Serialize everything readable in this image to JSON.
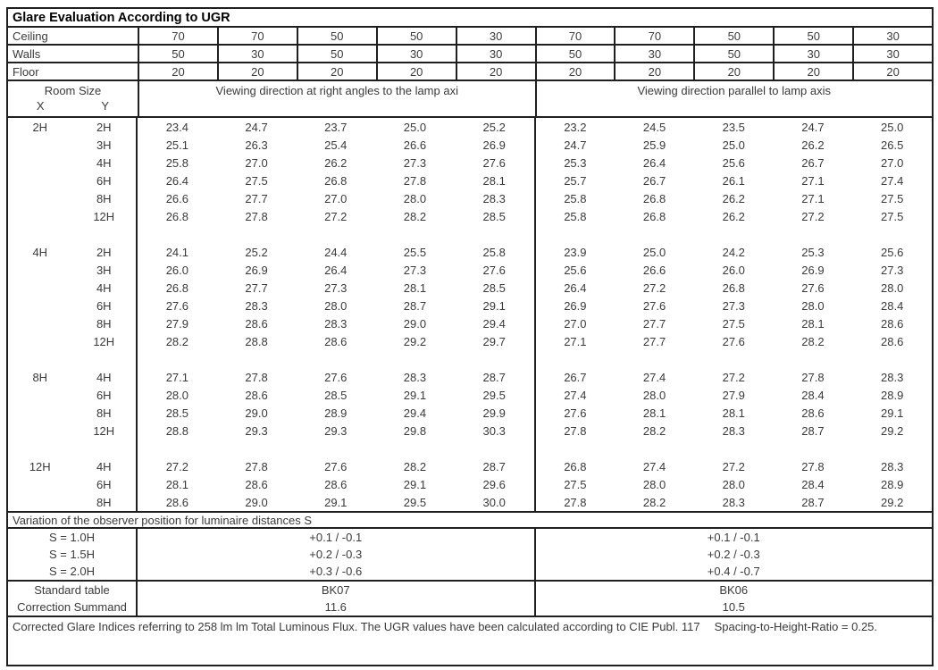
{
  "title": "Glare Evaluation According to UGR",
  "surface_rows": [
    {
      "label": "Ceiling",
      "values": [
        "70",
        "70",
        "50",
        "50",
        "30",
        "70",
        "70",
        "50",
        "50",
        "30"
      ]
    },
    {
      "label": "Walls",
      "values": [
        "50",
        "30",
        "50",
        "30",
        "30",
        "50",
        "30",
        "50",
        "30",
        "30"
      ]
    },
    {
      "label": "Floor",
      "values": [
        "20",
        "20",
        "20",
        "20",
        "20",
        "20",
        "20",
        "20",
        "20",
        "20"
      ]
    }
  ],
  "header": {
    "room_size": "Room Size",
    "x": "X",
    "y": "Y",
    "left": "Viewing direction at right angles to the lamp axi",
    "right": "Viewing direction parallel to lamp axis"
  },
  "blocks": [
    {
      "x": "2H",
      "rows": [
        {
          "y": "2H",
          "values": [
            "23.4",
            "24.7",
            "23.7",
            "25.0",
            "25.2",
            "23.2",
            "24.5",
            "23.5",
            "24.7",
            "25.0"
          ]
        },
        {
          "y": "3H",
          "values": [
            "25.1",
            "26.3",
            "25.4",
            "26.6",
            "26.9",
            "24.7",
            "25.9",
            "25.0",
            "26.2",
            "26.5"
          ]
        },
        {
          "y": "4H",
          "values": [
            "25.8",
            "27.0",
            "26.2",
            "27.3",
            "27.6",
            "25.3",
            "26.4",
            "25.6",
            "26.7",
            "27.0"
          ]
        },
        {
          "y": "6H",
          "values": [
            "26.4",
            "27.5",
            "26.8",
            "27.8",
            "28.1",
            "25.7",
            "26.7",
            "26.1",
            "27.1",
            "27.4"
          ]
        },
        {
          "y": "8H",
          "values": [
            "26.6",
            "27.7",
            "27.0",
            "28.0",
            "28.3",
            "25.8",
            "26.8",
            "26.2",
            "27.1",
            "27.5"
          ]
        },
        {
          "y": "12H",
          "values": [
            "26.8",
            "27.8",
            "27.2",
            "28.2",
            "28.5",
            "25.8",
            "26.8",
            "26.2",
            "27.2",
            "27.5"
          ]
        }
      ]
    },
    {
      "x": "4H",
      "rows": [
        {
          "y": "2H",
          "values": [
            "24.1",
            "25.2",
            "24.4",
            "25.5",
            "25.8",
            "23.9",
            "25.0",
            "24.2",
            "25.3",
            "25.6"
          ]
        },
        {
          "y": "3H",
          "values": [
            "26.0",
            "26.9",
            "26.4",
            "27.3",
            "27.6",
            "25.6",
            "26.6",
            "26.0",
            "26.9",
            "27.3"
          ]
        },
        {
          "y": "4H",
          "values": [
            "26.8",
            "27.7",
            "27.3",
            "28.1",
            "28.5",
            "26.4",
            "27.2",
            "26.8",
            "27.6",
            "28.0"
          ]
        },
        {
          "y": "6H",
          "values": [
            "27.6",
            "28.3",
            "28.0",
            "28.7",
            "29.1",
            "26.9",
            "27.6",
            "27.3",
            "28.0",
            "28.4"
          ]
        },
        {
          "y": "8H",
          "values": [
            "27.9",
            "28.6",
            "28.3",
            "29.0",
            "29.4",
            "27.0",
            "27.7",
            "27.5",
            "28.1",
            "28.6"
          ]
        },
        {
          "y": "12H",
          "values": [
            "28.2",
            "28.8",
            "28.6",
            "29.2",
            "29.7",
            "27.1",
            "27.7",
            "27.6",
            "28.2",
            "28.6"
          ]
        }
      ]
    },
    {
      "x": "8H",
      "rows": [
        {
          "y": "4H",
          "values": [
            "27.1",
            "27.8",
            "27.6",
            "28.3",
            "28.7",
            "26.7",
            "27.4",
            "27.2",
            "27.8",
            "28.3"
          ]
        },
        {
          "y": "6H",
          "values": [
            "28.0",
            "28.6",
            "28.5",
            "29.1",
            "29.5",
            "27.4",
            "28.0",
            "27.9",
            "28.4",
            "28.9"
          ]
        },
        {
          "y": "8H",
          "values": [
            "28.5",
            "29.0",
            "28.9",
            "29.4",
            "29.9",
            "27.6",
            "28.1",
            "28.1",
            "28.6",
            "29.1"
          ]
        },
        {
          "y": "12H",
          "values": [
            "28.8",
            "29.3",
            "29.3",
            "29.8",
            "30.3",
            "27.8",
            "28.2",
            "28.3",
            "28.7",
            "29.2"
          ]
        }
      ]
    },
    {
      "x": "12H",
      "rows": [
        {
          "y": "4H",
          "values": [
            "27.2",
            "27.8",
            "27.6",
            "28.2",
            "28.7",
            "26.8",
            "27.4",
            "27.2",
            "27.8",
            "28.3"
          ]
        },
        {
          "y": "6H",
          "values": [
            "28.1",
            "28.6",
            "28.6",
            "29.1",
            "29.6",
            "27.5",
            "28.0",
            "28.0",
            "28.4",
            "28.9"
          ]
        },
        {
          "y": "8H",
          "values": [
            "28.6",
            "29.0",
            "29.1",
            "29.5",
            "30.0",
            "27.8",
            "28.2",
            "28.3",
            "28.7",
            "29.2"
          ]
        }
      ]
    }
  ],
  "variation": {
    "title": "Variation of the observer position for luminaire distances S",
    "rows": [
      {
        "label": "S = 1.0H",
        "left": "+0.1 / -0.1",
        "right": "+0.1 / -0.1"
      },
      {
        "label": "S = 1.5H",
        "left": "+0.2 / -0.3",
        "right": "+0.2 / -0.3"
      },
      {
        "label": "S = 2.0H",
        "left": "+0.3 / -0.6",
        "right": "+0.4 / -0.7"
      }
    ]
  },
  "summary": {
    "rows": [
      {
        "label": "Standard table",
        "left": "BK07",
        "right": "BK06"
      },
      {
        "label": "Correction Summand",
        "left": "11.6",
        "right": "10.5"
      }
    ]
  },
  "footer": {
    "text": "Corrected Glare Indices referring to 258 lm lm Total Luminous Flux. The UGR values have been calculated according to CIE Publ. 117",
    "ratio": "Spacing-to-Height-Ratio = 0.25."
  },
  "colors": {
    "border": "#1f1f1f",
    "text": "#3a3a3a",
    "title_text": "#000000",
    "background": "#ffffff"
  }
}
